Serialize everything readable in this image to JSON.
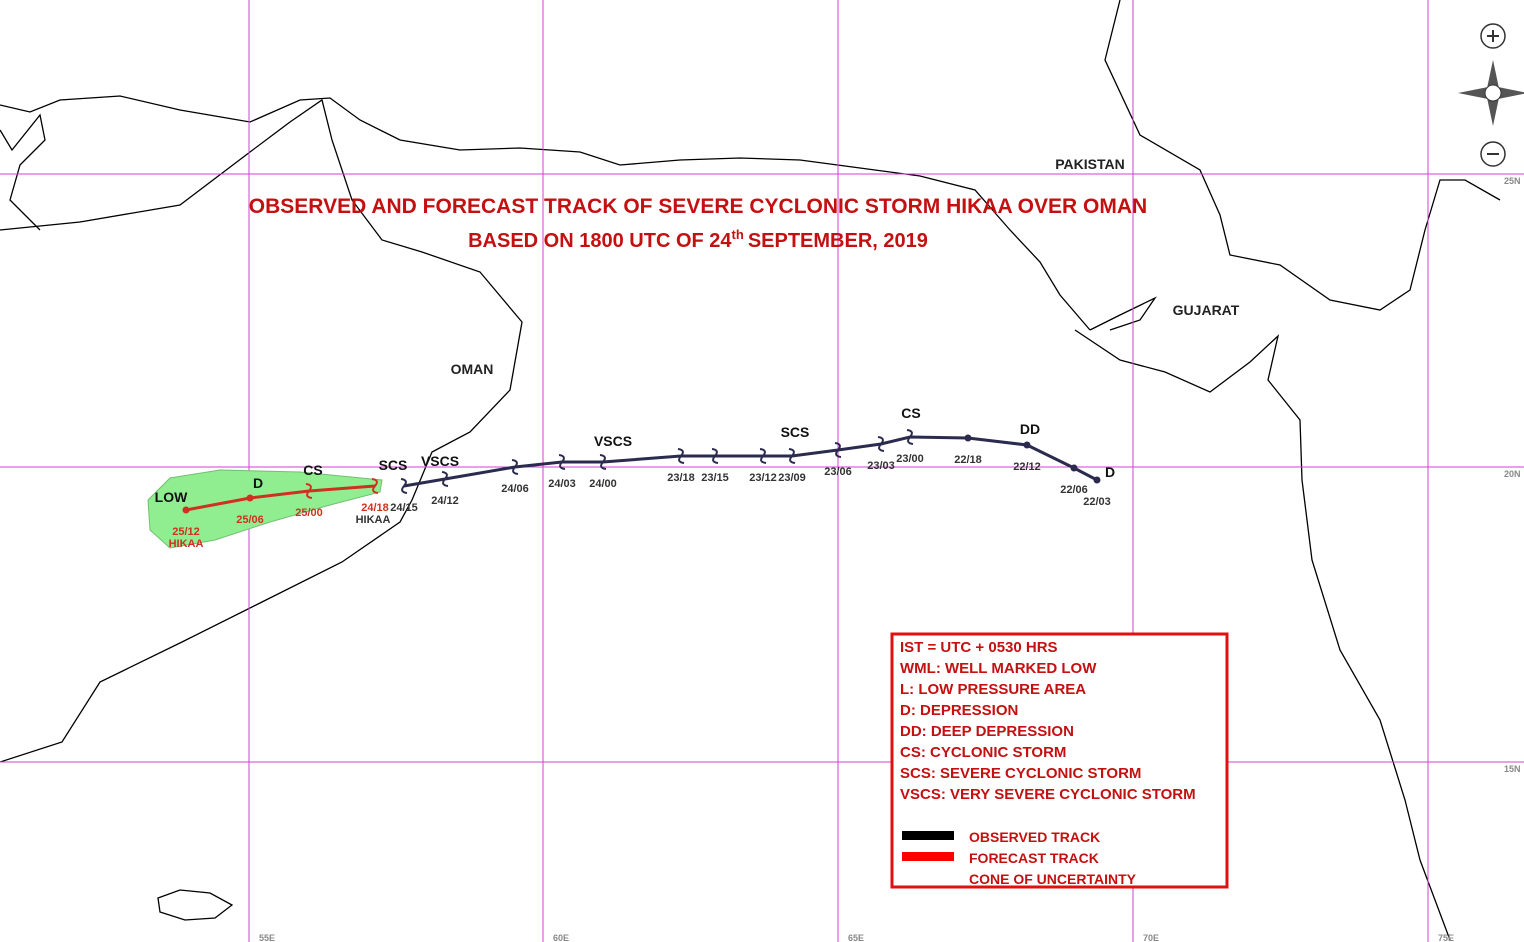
{
  "title": {
    "line1": "OBSERVED AND FORECAST TRACK OF  SEVERE CYCLONIC STORM HIKAA OVER OMAN",
    "line2_start": "BASED ON 1800 UTC OF 24",
    "line2_sup": "th",
    "line2_end": "SEPTEMBER, 2019"
  },
  "regions": [
    "PAKISTAN",
    "GUJARAT",
    "OMAN"
  ],
  "grid": {
    "lat": [
      "25N",
      "20N",
      "15N"
    ],
    "lon": [
      "55E",
      "60E",
      "65E",
      "70E",
      "75E"
    ]
  },
  "storm_name": "HIKAA",
  "observed_track": {
    "color": "#2b2b4f",
    "points": [
      {
        "time": "22/03",
        "intensity": "D"
      },
      {
        "time": "22/06"
      },
      {
        "time": "22/12",
        "intensity": "DD"
      },
      {
        "time": "22/18"
      },
      {
        "time": "23/00",
        "intensity": "CS"
      },
      {
        "time": "23/03"
      },
      {
        "time": "23/06"
      },
      {
        "time": "23/09",
        "intensity": "SCS"
      },
      {
        "time": "23/12"
      },
      {
        "time": "23/15"
      },
      {
        "time": "23/18"
      },
      {
        "time": "24/00",
        "intensity": "VSCS"
      },
      {
        "time": "24/03"
      },
      {
        "time": "24/06"
      },
      {
        "time": "24/12",
        "intensity": "VSCS"
      },
      {
        "time": "24/15",
        "intensity": "SCS"
      }
    ]
  },
  "forecast_track": {
    "color": "#d03020",
    "points": [
      {
        "time": "24/18"
      },
      {
        "time": "25/00",
        "intensity": "CS"
      },
      {
        "time": "25/06",
        "intensity": "D"
      },
      {
        "time": "25/12",
        "intensity": "LOW"
      }
    ]
  },
  "legend": {
    "notes": [
      "IST = UTC + 0530 HRS",
      "WML: WELL MARKED LOW",
      "L: LOW PRESSURE AREA",
      "D: DEPRESSION",
      "DD: DEEP DEPRESSION",
      "CS: CYCLONIC STORM",
      "SCS: SEVERE CYCLONIC STORM",
      "VSCS: VERY SEVERE CYCLONIC STORM"
    ],
    "items": [
      {
        "label": "OBSERVED TRACK",
        "color": "#000000"
      },
      {
        "label": "FORECAST TRACK",
        "color": "#ff0000"
      },
      {
        "label": "CONE OF UNCERTAINTY",
        "color": "#1a7a2a"
      }
    ]
  }
}
